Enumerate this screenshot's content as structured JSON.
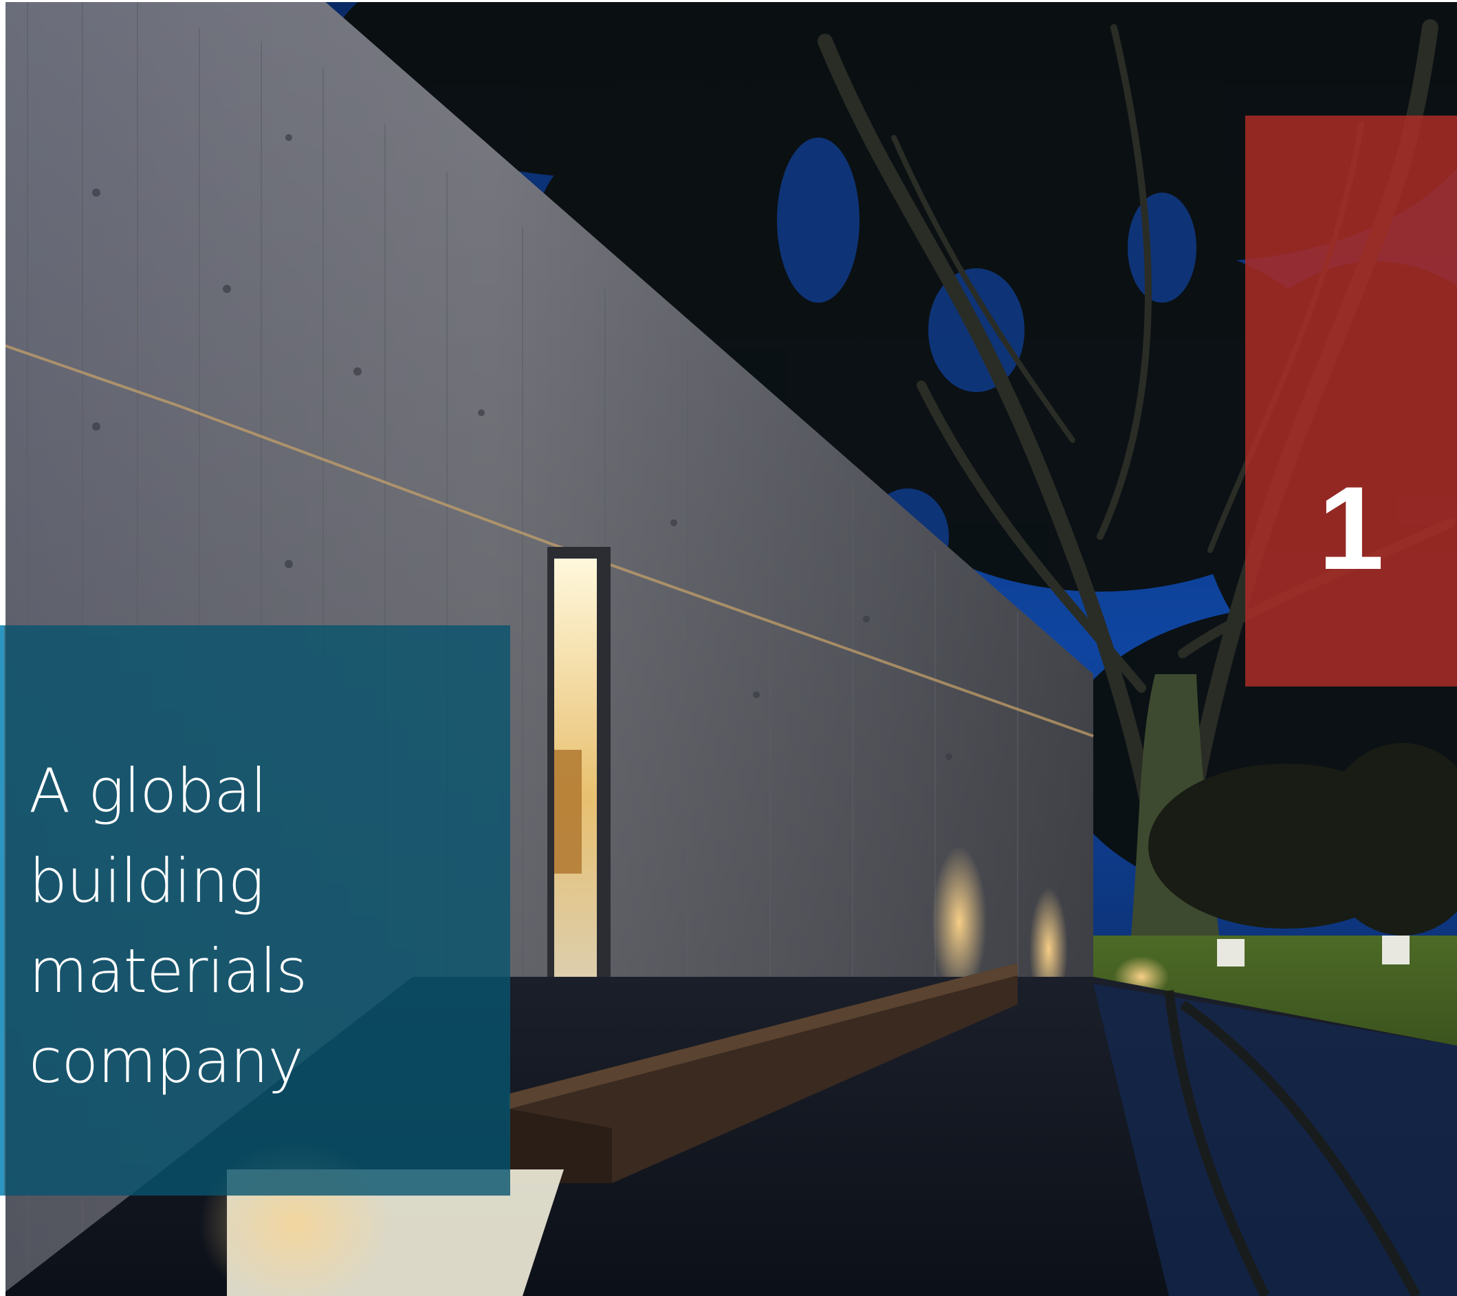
{
  "chapter": {
    "number": "1"
  },
  "headline": {
    "lines": [
      "A global",
      "building",
      "materials",
      "company"
    ]
  },
  "photo": {
    "subject": "concrete-wall-night-with-trees-and-reflecting-pool"
  },
  "colors": {
    "chapter_panel": "#aa2c26",
    "headline_panel": "#08546e",
    "sky": "#0d3d8c"
  }
}
